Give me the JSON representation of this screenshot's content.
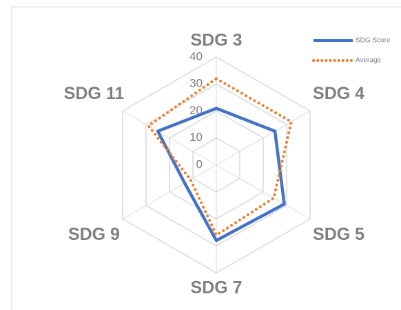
{
  "chart_data": {
    "type": "radar",
    "categories": [
      "SDG 3",
      "SDG 4",
      "SDG 5",
      "SDG 7",
      "SDG 9",
      "SDG 11"
    ],
    "series": [
      {
        "name": "SDG Score",
        "color": "#4472c4",
        "values": [
          21,
          25,
          29,
          28,
          13.5,
          25
        ]
      },
      {
        "name": "Average",
        "color": "#ed7d31",
        "values": [
          32,
          32,
          24.5,
          26,
          11,
          29
        ]
      }
    ],
    "ylim": [
      0,
      40
    ],
    "yticks": [
      0,
      10,
      20,
      30,
      40
    ],
    "grid": true,
    "legend": "top-right"
  }
}
